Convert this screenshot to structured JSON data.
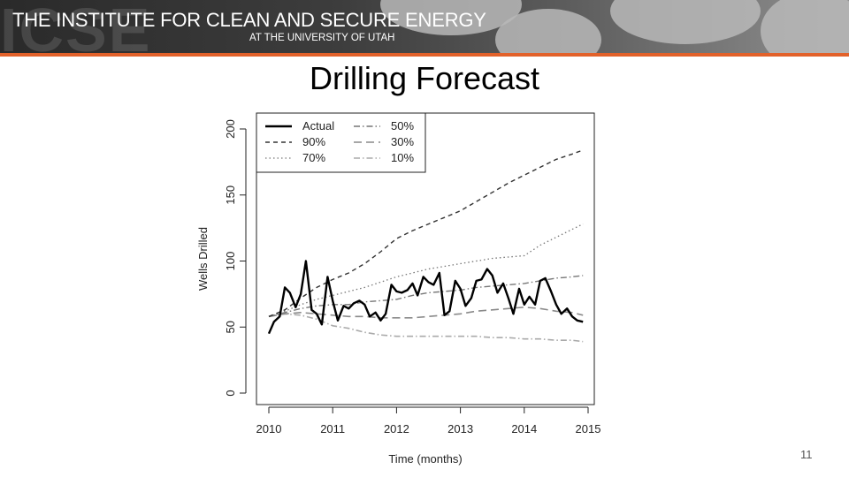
{
  "header": {
    "watermark": "ICSE",
    "title": "THE INSTITUTE FOR CLEAN AND SECURE ENERGY",
    "subtitle": "AT THE UNIVERSITY OF UTAH",
    "accent_color": "#e2612a"
  },
  "slide_title": "Drilling Forecast",
  "page_number": "11",
  "chart_data": {
    "type": "line",
    "title": "",
    "xlabel": "Time (months)",
    "ylabel": "Wells Drilled",
    "xlim": [
      2010,
      2015
    ],
    "ylim": [
      0,
      200
    ],
    "xticks": [
      "2010",
      "2011",
      "2012",
      "2013",
      "2014",
      "2015"
    ],
    "yticks": [
      "0",
      "50",
      "100",
      "150",
      "200"
    ],
    "legend_position": "top-left",
    "series": [
      {
        "name": "Actual",
        "style": "solid",
        "x": [
          2010.0,
          2010.08,
          2010.17,
          2010.25,
          2010.33,
          2010.42,
          2010.5,
          2010.58,
          2010.67,
          2010.75,
          2010.83,
          2010.92,
          2011.0,
          2011.08,
          2011.17,
          2011.25,
          2011.33,
          2011.42,
          2011.5,
          2011.58,
          2011.67,
          2011.75,
          2011.83,
          2011.92,
          2012.0,
          2012.08,
          2012.17,
          2012.25,
          2012.33,
          2012.42,
          2012.5,
          2012.58,
          2012.67,
          2012.75,
          2012.83,
          2012.92,
          2013.0,
          2013.08,
          2013.17,
          2013.25,
          2013.33,
          2013.42,
          2013.5,
          2013.58,
          2013.67,
          2013.75,
          2013.83,
          2013.92,
          2014.0,
          2014.08,
          2014.17,
          2014.25,
          2014.33,
          2014.42,
          2014.5,
          2014.58,
          2014.67,
          2014.75,
          2014.83,
          2014.92
        ],
        "values": [
          45,
          54,
          58,
          80,
          76,
          65,
          75,
          100,
          63,
          60,
          52,
          88,
          70,
          55,
          66,
          64,
          68,
          70,
          67,
          58,
          61,
          55,
          60,
          82,
          77,
          76,
          78,
          83,
          74,
          88,
          84,
          82,
          91,
          59,
          62,
          85,
          79,
          66,
          72,
          85,
          86,
          94,
          89,
          76,
          83,
          72,
          60,
          79,
          67,
          73,
          67,
          85,
          87,
          77,
          67,
          60,
          64,
          58,
          55,
          54
        ]
      },
      {
        "name": "90%",
        "style": "dashed",
        "x": [
          2010.0,
          2010.25,
          2010.5,
          2010.75,
          2011.0,
          2011.25,
          2011.5,
          2011.75,
          2012.0,
          2012.25,
          2012.5,
          2012.75,
          2013.0,
          2013.25,
          2013.5,
          2013.75,
          2014.0,
          2014.25,
          2014.5,
          2014.75,
          2014.92
        ],
        "values": [
          58,
          63,
          72,
          80,
          86,
          91,
          98,
          107,
          117,
          123,
          128,
          133,
          138,
          145,
          152,
          159,
          165,
          171,
          177,
          181,
          184
        ]
      },
      {
        "name": "70%",
        "style": "dotted",
        "x": [
          2010.0,
          2010.25,
          2010.5,
          2010.75,
          2011.0,
          2011.25,
          2011.5,
          2011.75,
          2012.0,
          2012.25,
          2012.5,
          2012.75,
          2013.0,
          2013.25,
          2013.5,
          2013.75,
          2014.0,
          2014.25,
          2014.5,
          2014.75,
          2014.92
        ],
        "values": [
          58,
          62,
          67,
          71,
          74,
          77,
          80,
          84,
          88,
          91,
          94,
          96,
          98,
          100,
          102,
          103,
          104,
          112,
          118,
          124,
          128
        ]
      },
      {
        "name": "50%",
        "style": "dashdot",
        "x": [
          2010.0,
          2010.25,
          2010.5,
          2010.75,
          2011.0,
          2011.25,
          2011.5,
          2011.75,
          2012.0,
          2012.25,
          2012.5,
          2012.75,
          2013.0,
          2013.25,
          2013.5,
          2013.75,
          2014.0,
          2014.25,
          2014.5,
          2014.75,
          2014.92
        ],
        "values": [
          58,
          61,
          64,
          66,
          67,
          67,
          69,
          70,
          71,
          74,
          76,
          77,
          78,
          80,
          81,
          82,
          83,
          85,
          87,
          88,
          89
        ]
      },
      {
        "name": "30%",
        "style": "longdash",
        "x": [
          2010.0,
          2010.25,
          2010.5,
          2010.75,
          2011.0,
          2011.25,
          2011.5,
          2011.75,
          2012.0,
          2012.25,
          2012.5,
          2012.75,
          2013.0,
          2013.25,
          2013.5,
          2013.75,
          2014.0,
          2014.25,
          2014.5,
          2014.75,
          2014.92
        ],
        "values": [
          58,
          60,
          61,
          60,
          59,
          58,
          58,
          57,
          57,
          57,
          58,
          59,
          60,
          62,
          63,
          64,
          65,
          64,
          62,
          61,
          59
        ]
      },
      {
        "name": "10%",
        "style": "dashdot-gray",
        "x": [
          2010.0,
          2010.25,
          2010.5,
          2010.75,
          2011.0,
          2011.25,
          2011.5,
          2011.75,
          2012.0,
          2012.25,
          2012.5,
          2012.75,
          2013.0,
          2013.25,
          2013.5,
          2013.75,
          2014.0,
          2014.25,
          2014.5,
          2014.75,
          2014.92
        ],
        "values": [
          58,
          60,
          59,
          56,
          51,
          49,
          46,
          44,
          43,
          43,
          43,
          43,
          43,
          43,
          42,
          42,
          41,
          41,
          40,
          40,
          39
        ]
      }
    ]
  }
}
